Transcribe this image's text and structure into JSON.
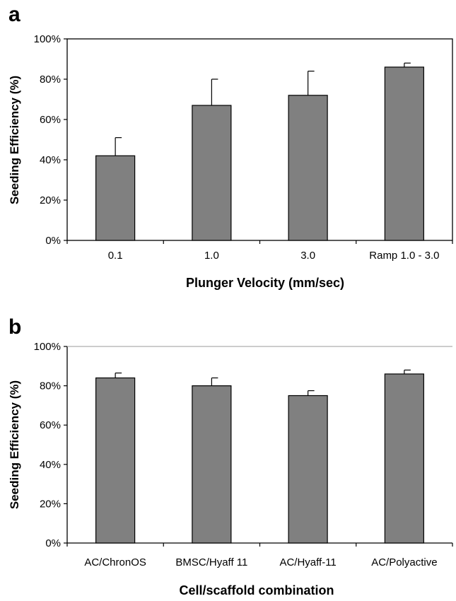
{
  "chart_data": [
    {
      "panel": "a",
      "type": "bar",
      "categories": [
        "0.1",
        "1.0",
        "3.0",
        "Ramp 1.0 - 3.0"
      ],
      "values": [
        42,
        67,
        72,
        86
      ],
      "errors": [
        9,
        13,
        12,
        2
      ],
      "ylabel": "Seeding Efficiency (%)",
      "xlabel": "Plunger Velocity (mm/sec)",
      "yticks": [
        "0%",
        "20%",
        "40%",
        "60%",
        "80%",
        "100%"
      ],
      "ylim": [
        0,
        100
      ],
      "bar_color": "#808080",
      "axis_style": "boxed"
    },
    {
      "panel": "b",
      "type": "bar",
      "categories": [
        "AC/ChronOS",
        "BMSC/Hyaff 11",
        "AC/Hyaff-11",
        "AC/Polyactive"
      ],
      "values": [
        84,
        80,
        75,
        86
      ],
      "errors": [
        2.5,
        4,
        2.5,
        2
      ],
      "ylabel": "Seeding Efficiency (%)",
      "xlabel": "Cell/scaffold combination",
      "yticks": [
        "0%",
        "20%",
        "40%",
        "60%",
        "80%",
        "100%"
      ],
      "ylim": [
        0,
        100
      ],
      "bar_color": "#808080",
      "axis_style": "open"
    }
  ]
}
